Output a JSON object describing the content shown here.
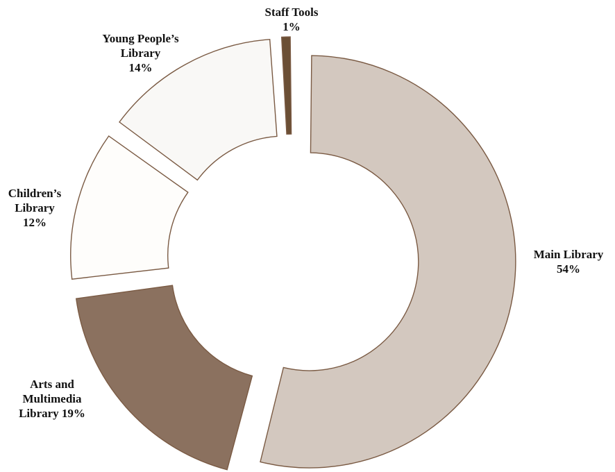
{
  "chart_data": {
    "type": "pie",
    "categories": [
      "Main Library",
      "Arts and Multimedia Library",
      "Children's Library",
      "Young People's Library",
      "Staff Tools"
    ],
    "values": [
      54,
      19,
      12,
      14,
      1
    ],
    "unit": "%",
    "colors": [
      "#d3c8bf",
      "#8b715f",
      "#fefdfb",
      "#f9f8f6",
      "#6b4f35"
    ],
    "stroke_color": "#7a5a43",
    "labels": {
      "staff": {
        "lines": [
          "Staff Tools",
          "1%"
        ]
      },
      "young": {
        "lines": [
          "Young People’s",
          "Library",
          "14%"
        ]
      },
      "children": {
        "lines": [
          "Children’s",
          "Library",
          "12%"
        ]
      },
      "main": {
        "lines": [
          "Main Library",
          "54%"
        ]
      },
      "arts": {
        "lines": [
          "Arts and",
          "Multimedia",
          "Library 19%"
        ]
      }
    }
  }
}
